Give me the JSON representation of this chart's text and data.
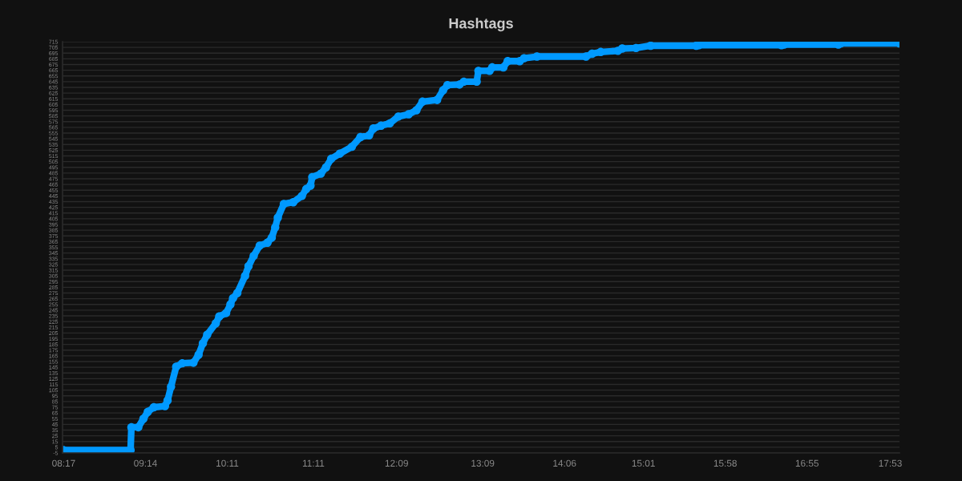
{
  "chart_data": {
    "type": "line",
    "title": "Hashtags",
    "x": [
      8.28,
      9.06,
      9.07,
      9.15,
      9.21,
      9.26,
      9.33,
      9.46,
      9.49,
      9.53,
      9.59,
      9.66,
      9.79,
      9.85,
      9.9,
      9.95,
      10.05,
      10.09,
      10.17,
      10.22,
      10.25,
      10.3,
      10.39,
      10.43,
      10.49,
      10.56,
      10.65,
      10.7,
      10.74,
      10.77,
      10.84,
      10.95,
      11.05,
      11.1,
      11.15,
      11.17,
      11.27,
      11.33,
      11.39,
      11.49,
      11.63,
      11.73,
      11.83,
      11.88,
      11.97,
      12.07,
      12.17,
      12.29,
      12.38,
      12.45,
      12.62,
      12.69,
      12.74,
      12.88,
      12.93,
      13.08,
      13.1,
      13.23,
      13.26,
      13.39,
      13.44,
      13.58,
      13.63,
      13.78,
      14.35,
      14.42,
      14.52,
      14.72,
      14.77,
      14.93,
      15.1,
      15.63,
      15.66,
      16.62,
      16.65,
      17.28,
      17.31,
      17.99
    ],
    "series": [
      {
        "color": "#0099ff",
        "values": [
          0,
          0,
          40,
          40,
          55,
          67,
          75,
          77,
          87,
          111,
          146,
          152,
          153,
          167,
          187,
          202,
          222,
          234,
          240,
          255,
          266,
          275,
          305,
          322,
          340,
          358,
          363,
          372,
          390,
          407,
          431,
          434,
          445,
          457,
          463,
          478,
          484,
          495,
          510,
          519,
          531,
          548,
          551,
          563,
          568,
          572,
          584,
          588,
          595,
          610,
          613,
          630,
          639,
          640,
          645,
          645,
          664,
          664,
          670,
          670,
          681,
          681,
          686,
          689,
          689,
          694,
          697,
          699,
          703,
          704,
          708,
          708,
          709,
          709,
          710,
          710,
          712,
          712
        ]
      }
    ],
    "xlim": [
      8.27,
      17.99
    ],
    "ylim": [
      -5,
      715
    ],
    "xticks": [
      {
        "value": 8.2833,
        "label": "08:17"
      },
      {
        "value": 9.2333,
        "label": "09:14"
      },
      {
        "value": 10.1833,
        "label": "10:11"
      },
      {
        "value": 11.1833,
        "label": "11:11"
      },
      {
        "value": 12.15,
        "label": "12:09"
      },
      {
        "value": 13.15,
        "label": "13:09"
      },
      {
        "value": 14.1,
        "label": "14:06"
      },
      {
        "value": 15.0167,
        "label": "15:01"
      },
      {
        "value": 15.9667,
        "label": "15:58"
      },
      {
        "value": 16.9167,
        "label": "16:55"
      },
      {
        "value": 17.8833,
        "label": "17:53"
      }
    ],
    "yticks": [
      -5,
      5,
      15,
      25,
      35,
      45,
      55,
      65,
      75,
      85,
      95,
      105,
      115,
      125,
      135,
      145,
      155,
      165,
      175,
      185,
      195,
      205,
      215,
      225,
      235,
      245,
      255,
      265,
      275,
      285,
      295,
      305,
      315,
      325,
      335,
      345,
      355,
      365,
      375,
      385,
      395,
      405,
      415,
      425,
      435,
      445,
      455,
      465,
      475,
      485,
      495,
      505,
      515,
      525,
      535,
      545,
      555,
      565,
      575,
      585,
      595,
      605,
      615,
      625,
      635,
      645,
      655,
      665,
      675,
      685,
      695,
      705,
      715
    ],
    "grid": "y",
    "marker": "circle",
    "line_style": "solid"
  }
}
